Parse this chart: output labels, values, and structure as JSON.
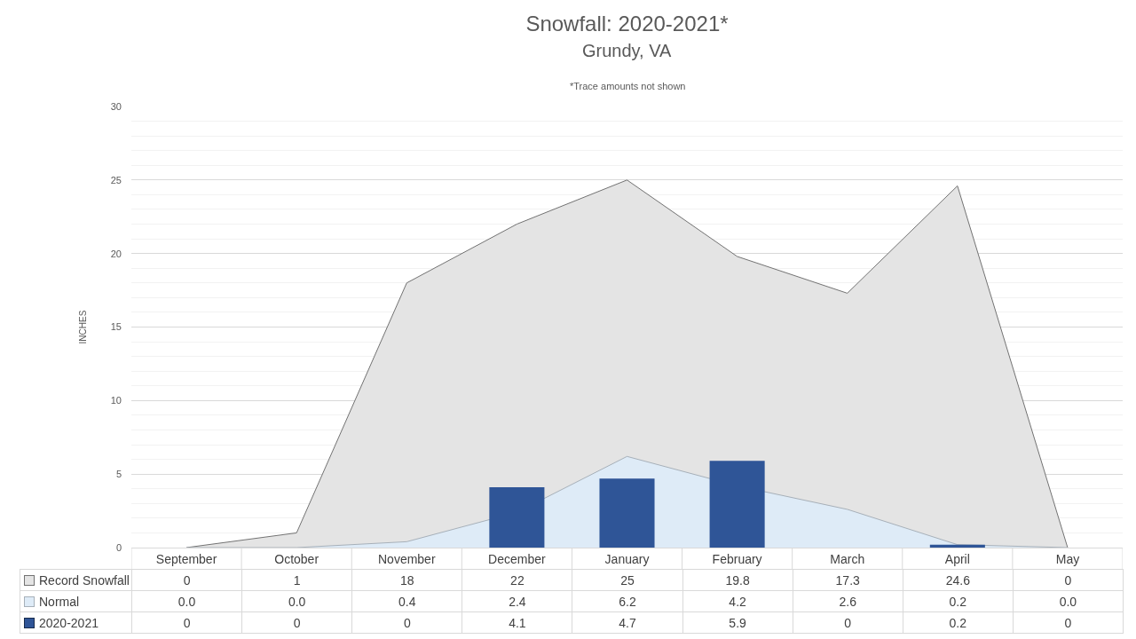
{
  "chart_data": {
    "type": "bar",
    "title": "Snowfall: 2020-2021*",
    "subtitle": "Grundy, VA",
    "annotations": [
      "*Trace amounts not shown"
    ],
    "ylabel": "INCHES",
    "categories": [
      "September",
      "October",
      "November",
      "December",
      "January",
      "February",
      "March",
      "April",
      "May"
    ],
    "series": [
      {
        "name": "Record Snowfall",
        "type": "area",
        "color": "#e4e4e4",
        "values": [
          0,
          1,
          18,
          22,
          25,
          19.8,
          17.3,
          24.6,
          0
        ],
        "value_labels": [
          "0",
          "1",
          "18",
          "22",
          "25",
          "19.8",
          "17.3",
          "24.6",
          "0"
        ]
      },
      {
        "name": "Normal",
        "type": "area",
        "color": "#deebf7",
        "values": [
          0,
          0,
          0.4,
          2.4,
          6.2,
          4.2,
          2.6,
          0.2,
          0
        ],
        "value_labels": [
          "0.0",
          "0.0",
          "0.4",
          "2.4",
          "6.2",
          "4.2",
          "2.6",
          "0.2",
          "0.0"
        ]
      },
      {
        "name": "2020-2021",
        "color": "#2f5597",
        "values": [
          0,
          0,
          0,
          4.1,
          4.7,
          5.9,
          0,
          0.2,
          0
        ],
        "value_labels": [
          "0",
          "0",
          "0",
          "4.1",
          "4.7",
          "5.9",
          "0",
          "0.2",
          "0"
        ]
      }
    ],
    "ylim": [
      0,
      30
    ],
    "yticks": [
      0,
      5,
      10,
      15,
      20,
      25,
      30
    ],
    "grid": "y",
    "legend": "bottom"
  }
}
